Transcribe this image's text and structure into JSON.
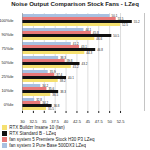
{
  "chart_data": {
    "type": "bar",
    "orientation": "horizontal",
    "title": "Noise Output Comparison Stock Fans - LZeq",
    "categories": [
      "0%ile",
      "10%ile",
      "25%ile",
      "50%ile",
      "75%ile",
      "90%ile",
      "100%ile"
    ],
    "series": [
      {
        "name": "RTX Buildzr Insane 10 (fan)",
        "color": "#f5e070",
        "values": [
          35.5,
          36.5,
          38.2,
          41.2,
          44.3,
          46.6,
          52.5
        ]
      },
      {
        "name": "RTX Standard B - LZeq",
        "color": "#111111",
        "values": [
          36.8,
          38.3,
          40.1,
          43.2,
          46.8,
          50.5,
          55.2
        ]
      },
      {
        "name": "fan system 5 Premiere Stock H30 P3 LZeq",
        "color": "#e87878",
        "values": [
          34.2,
          35.6,
          37.4,
          39.8,
          43.1,
          45.8,
          51.5
        ]
      },
      {
        "name": "fan system 3 Pure Base 500DX3 LZeq",
        "color": "#a8c0e0",
        "values": [
          32.8,
          34.2,
          35.9,
          38.3,
          41.2,
          44.1,
          50.1
        ]
      }
    ],
    "xlim": [
      30,
      58
    ],
    "xticks": [
      30,
      32.5,
      35,
      37.5,
      40,
      42.5,
      45,
      47.5,
      50,
      52.5
    ],
    "grid": true,
    "data_labels": true,
    "legend": "bottom"
  }
}
